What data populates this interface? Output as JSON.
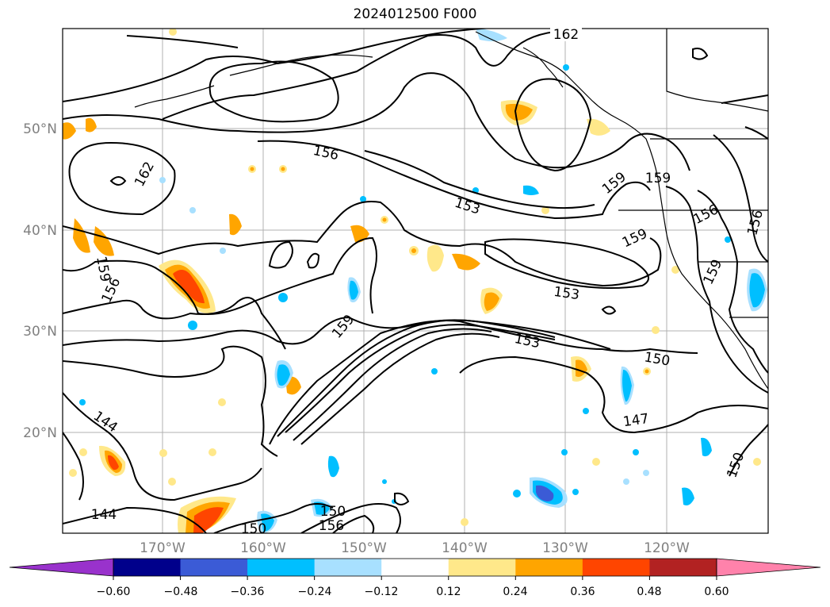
{
  "title": "2024012500 F000",
  "map": {
    "lat_labels": [
      "50°N",
      "40°N",
      "30°N",
      "20°N"
    ],
    "lon_labels": [
      "170°W",
      "160°W",
      "150°W",
      "140°W",
      "130°W",
      "120°W"
    ],
    "contour_labels": [
      "162",
      "156",
      "162",
      "153",
      "159",
      "159",
      "156",
      "156",
      "159",
      "159",
      "156",
      "153",
      "159",
      "153",
      "150",
      "147",
      "144",
      "144",
      "150",
      "150",
      "156",
      "150"
    ]
  },
  "colorbar": {
    "ticks": [
      "−0.60",
      "−0.48",
      "−0.36",
      "−0.24",
      "−0.12",
      "0.12",
      "0.24",
      "0.36",
      "0.48",
      "0.60"
    ],
    "colors": [
      "#9932cc",
      "#00008b",
      "#3b5bd6",
      "#00bfff",
      "#a8e0ff",
      "#ffffff",
      "#ffe88a",
      "#ffa500",
      "#ff4500",
      "#b22222",
      "#ff82ab"
    ]
  }
}
